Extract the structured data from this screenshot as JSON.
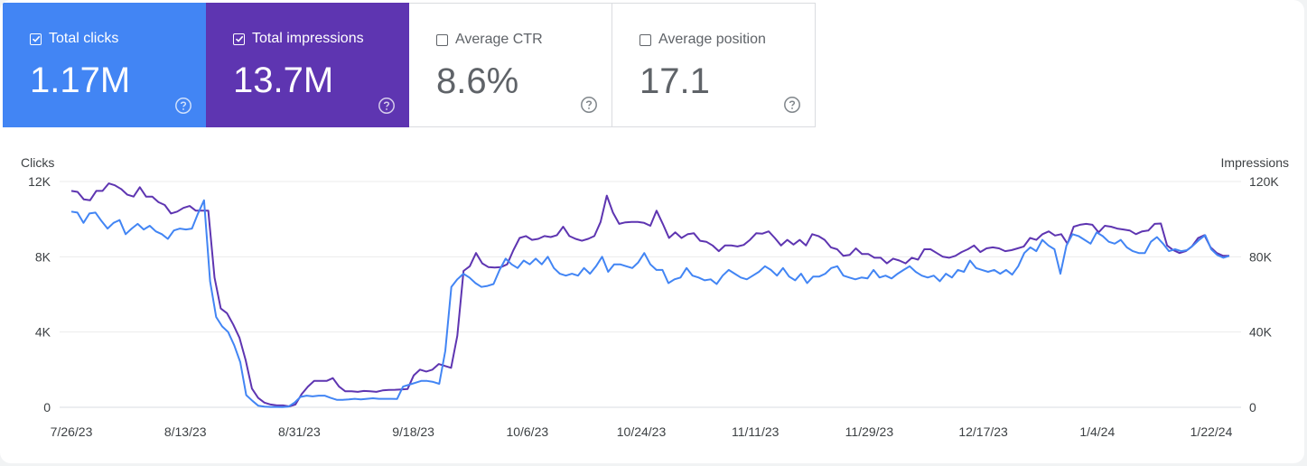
{
  "metrics": {
    "clicks": {
      "label": "Total clicks",
      "value": "1.17M",
      "checked": true,
      "color": "#4285f4"
    },
    "impressions": {
      "label": "Total impressions",
      "value": "13.7M",
      "checked": true,
      "color": "#5e35b1"
    },
    "ctr": {
      "label": "Average CTR",
      "value": "8.6%",
      "checked": false
    },
    "position": {
      "label": "Average position",
      "value": "17.1",
      "checked": false
    }
  },
  "icons": {
    "help": "help-circle-icon",
    "checkbox": "checkbox-icon"
  },
  "chart_data": {
    "type": "line",
    "ylabel_left": "Clicks",
    "ylabel_right": "Impressions",
    "y_left_ticks": [
      "12K",
      "8K",
      "4K",
      "0"
    ],
    "y_right_ticks": [
      "120K",
      "80K",
      "40K",
      "0"
    ],
    "y_left_range": [
      0,
      12000
    ],
    "y_right_range": [
      0,
      120000
    ],
    "x_ticks": [
      "7/26/23",
      "8/13/23",
      "8/31/23",
      "9/18/23",
      "10/6/23",
      "10/24/23",
      "11/11/23",
      "11/29/23",
      "12/17/23",
      "1/4/24",
      "1/22/24"
    ],
    "grid": true,
    "series": [
      {
        "name": "Total clicks",
        "color": "#4285f4",
        "axis": "left",
        "values": [
          10400,
          10350,
          9800,
          10300,
          10350,
          9900,
          9500,
          9800,
          9950,
          9200,
          9500,
          9750,
          9450,
          9650,
          9350,
          9200,
          8950,
          9400,
          9500,
          9450,
          9500,
          10300,
          11000,
          6700,
          4800,
          4300,
          4000,
          3300,
          2400,
          650,
          350,
          80,
          40,
          20,
          20,
          10,
          40,
          250,
          550,
          620,
          580,
          620,
          620,
          500,
          400,
          400,
          420,
          450,
          420,
          450,
          480,
          450,
          450,
          450,
          440,
          1100,
          1200,
          1300,
          1400,
          1400,
          1350,
          1250,
          3000,
          6400,
          6800,
          7100,
          6900,
          6600,
          6400,
          6450,
          6550,
          7300,
          7900,
          7600,
          7400,
          7800,
          7600,
          7900,
          7600,
          8000,
          7400,
          7100,
          7000,
          7100,
          7000,
          7400,
          7100,
          7500,
          8000,
          7200,
          7600,
          7600,
          7500,
          7400,
          7700,
          8200,
          7600,
          7300,
          7300,
          6600,
          6800,
          6900,
          7400,
          7000,
          6900,
          6750,
          6800,
          6550,
          7000,
          7300,
          7100,
          6900,
          6800,
          7000,
          7200,
          7500,
          7300,
          7000,
          7400,
          6950,
          6750,
          7100,
          6600,
          6950,
          6950,
          7100,
          7400,
          7500,
          7000,
          6900,
          6800,
          6900,
          6850,
          7300,
          6900,
          7000,
          6850,
          7100,
          7300,
          7500,
          7200,
          7000,
          6900,
          7000,
          6700,
          7100,
          6900,
          7300,
          7200,
          7800,
          7400,
          7300,
          7200,
          7300,
          7100,
          7300,
          7050,
          7500,
          8200,
          8500,
          8300,
          8900,
          8600,
          8400,
          7100,
          8600,
          9200,
          9100,
          8900,
          8700,
          9300,
          9100,
          8800,
          8700,
          8900,
          8500,
          8300,
          8200,
          8200,
          8800,
          9050,
          8700,
          8300,
          8400,
          8300,
          8350,
          8600,
          8900,
          9150,
          8400,
          8100,
          7950,
          8050
        ]
      },
      {
        "name": "Total impressions",
        "color": "#5e35b1",
        "axis": "right",
        "values": [
          115000,
          114500,
          110500,
          110000,
          115000,
          115000,
          119000,
          118000,
          116000,
          113000,
          112000,
          117000,
          112000,
          112000,
          109000,
          107500,
          103000,
          104000,
          106000,
          107000,
          104500,
          104500,
          104500,
          69000,
          52500,
          50000,
          44000,
          37000,
          25000,
          10000,
          5000,
          2500,
          1500,
          1000,
          1000,
          500,
          1500,
          7000,
          11000,
          14000,
          14000,
          14000,
          15500,
          11000,
          8500,
          8500,
          8200,
          8700,
          8500,
          8200,
          9000,
          9200,
          9300,
          9500,
          9700,
          17000,
          20000,
          19000,
          20000,
          23000,
          22000,
          21000,
          38000,
          72500,
          75000,
          82000,
          76500,
          74500,
          74300,
          74500,
          76000,
          83500,
          90000,
          91000,
          89000,
          89500,
          91000,
          90500,
          91500,
          96000,
          91000,
          89500,
          88500,
          89500,
          91000,
          98500,
          112500,
          103500,
          97500,
          98300,
          98500,
          98500,
          98000,
          96500,
          104500,
          97500,
          90000,
          93000,
          90000,
          92000,
          92500,
          88500,
          88000,
          86000,
          83000,
          86000,
          86000,
          85500,
          86300,
          89000,
          92500,
          92300,
          93500,
          90000,
          86000,
          89000,
          86500,
          89000,
          86000,
          92000,
          91000,
          89000,
          85000,
          84000,
          80500,
          81000,
          84500,
          81500,
          81500,
          79500,
          79500,
          76500,
          79000,
          78000,
          76500,
          79500,
          78500,
          84000,
          84000,
          82000,
          80000,
          79500,
          80500,
          82500,
          84000,
          86000,
          82500,
          84500,
          85000,
          84500,
          83000,
          83500,
          84500,
          85500,
          90000,
          89000,
          92000,
          93500,
          91300,
          92000,
          87000,
          96000,
          97000,
          97500,
          97000,
          93000,
          96500,
          96000,
          95000,
          94500,
          94000,
          92000,
          93500,
          94000,
          97500,
          97700,
          86000,
          83500,
          82000,
          83000,
          85500,
          90000,
          91500,
          85000,
          82000,
          80500,
          80500
        ]
      }
    ]
  }
}
